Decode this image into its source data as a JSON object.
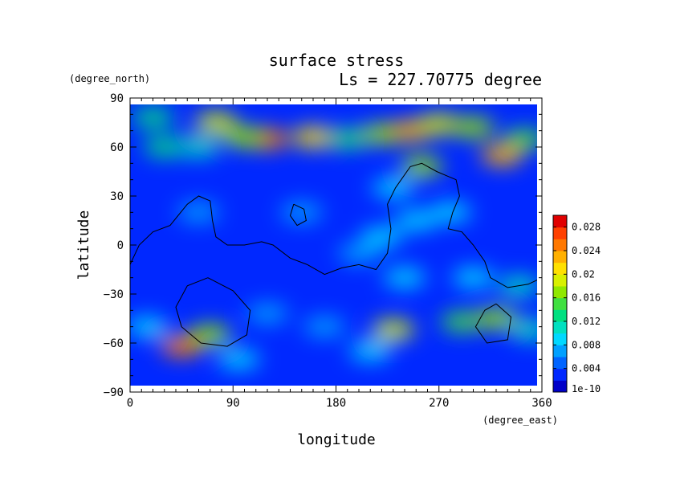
{
  "chart_data": {
    "type": "heatmap",
    "title": "surface stress",
    "subtitle": "Ls = 227.70775 degree",
    "xlabel": "longitude",
    "ylabel": "latitude",
    "x_unit": "(degree_east)",
    "y_unit": "(degree_north)",
    "xlim": [
      0,
      360
    ],
    "ylim": [
      -90,
      90
    ],
    "x_ticks": [
      "0",
      "90",
      "180",
      "270",
      "360"
    ],
    "y_ticks": [
      "90",
      "60",
      "30",
      "0",
      "−30",
      "−60",
      "−90"
    ],
    "colorbar": {
      "range": [
        0,
        0.03
      ],
      "tick_labels": [
        "1e-10",
        "0.004",
        "0.008",
        "0.012",
        "0.016",
        "0.02",
        "0.024",
        "0.028"
      ],
      "tick_values": [
        0,
        0.004,
        0.008,
        0.012,
        0.016,
        0.02,
        0.024,
        0.028
      ],
      "colors": [
        "#0000c8",
        "#0028ff",
        "#0064ff",
        "#00a0ff",
        "#00d8ff",
        "#00e0c0",
        "#00e080",
        "#40e040",
        "#90e800",
        "#d8f000",
        "#ffe000",
        "#ffb000",
        "#ff7800",
        "#ff4000",
        "#e00000"
      ]
    },
    "background_value": 0.003,
    "grid": false,
    "features": [
      {
        "lon": 75,
        "lat": 75,
        "value": 0.018
      },
      {
        "lon": 20,
        "lat": 78,
        "value": 0.012
      },
      {
        "lon": 30,
        "lat": 60,
        "value": 0.012
      },
      {
        "lon": 60,
        "lat": 60,
        "value": 0.011
      },
      {
        "lon": 120,
        "lat": 65,
        "value": 0.025
      },
      {
        "lon": 160,
        "lat": 66,
        "value": 0.02
      },
      {
        "lon": 100,
        "lat": 66,
        "value": 0.016
      },
      {
        "lon": 190,
        "lat": 65,
        "value": 0.012
      },
      {
        "lon": 220,
        "lat": 68,
        "value": 0.016
      },
      {
        "lon": 245,
        "lat": 70,
        "value": 0.022
      },
      {
        "lon": 270,
        "lat": 74,
        "value": 0.018
      },
      {
        "lon": 300,
        "lat": 72,
        "value": 0.016
      },
      {
        "lon": 325,
        "lat": 55,
        "value": 0.023
      },
      {
        "lon": 345,
        "lat": 65,
        "value": 0.014
      },
      {
        "lon": 255,
        "lat": 48,
        "value": 0.016
      },
      {
        "lon": 230,
        "lat": 35,
        "value": 0.009
      },
      {
        "lon": 250,
        "lat": 15,
        "value": 0.009
      },
      {
        "lon": 220,
        "lat": 5,
        "value": 0.008
      },
      {
        "lon": 280,
        "lat": 20,
        "value": 0.008
      },
      {
        "lon": 200,
        "lat": -5,
        "value": 0.007
      },
      {
        "lon": 240,
        "lat": -20,
        "value": 0.009
      },
      {
        "lon": 300,
        "lat": -20,
        "value": 0.008
      },
      {
        "lon": 340,
        "lat": -25,
        "value": 0.01
      },
      {
        "lon": 60,
        "lat": 20,
        "value": 0.007
      },
      {
        "lon": 150,
        "lat": 20,
        "value": 0.006
      },
      {
        "lon": 45,
        "lat": -62,
        "value": 0.025
      },
      {
        "lon": 70,
        "lat": -55,
        "value": 0.016
      },
      {
        "lon": 15,
        "lat": -50,
        "value": 0.009
      },
      {
        "lon": 95,
        "lat": -70,
        "value": 0.008
      },
      {
        "lon": 230,
        "lat": -52,
        "value": 0.018
      },
      {
        "lon": 210,
        "lat": -65,
        "value": 0.009
      },
      {
        "lon": 290,
        "lat": -47,
        "value": 0.014
      },
      {
        "lon": 320,
        "lat": -45,
        "value": 0.016
      },
      {
        "lon": 350,
        "lat": -52,
        "value": 0.011
      },
      {
        "lon": 120,
        "lat": -42,
        "value": 0.007
      },
      {
        "lon": 170,
        "lat": -50,
        "value": 0.006
      }
    ],
    "contours": [
      [
        [
          0,
          -12
        ],
        [
          8,
          0
        ],
        [
          20,
          8
        ],
        [
          35,
          12
        ],
        [
          50,
          25
        ],
        [
          60,
          30
        ],
        [
          70,
          27
        ],
        [
          72,
          15
        ],
        [
          75,
          5
        ],
        [
          85,
          0
        ],
        [
          100,
          0
        ],
        [
          115,
          2
        ],
        [
          125,
          0
        ],
        [
          140,
          -8
        ],
        [
          155,
          -12
        ],
        [
          170,
          -18
        ],
        [
          185,
          -14
        ],
        [
          200,
          -12
        ],
        [
          215,
          -15
        ],
        [
          225,
          -5
        ],
        [
          228,
          10
        ],
        [
          225,
          25
        ],
        [
          232,
          35
        ],
        [
          245,
          48
        ],
        [
          255,
          50
        ],
        [
          268,
          45
        ],
        [
          278,
          42
        ],
        [
          285,
          40
        ],
        [
          288,
          30
        ],
        [
          282,
          20
        ],
        [
          278,
          10
        ],
        [
          290,
          8
        ],
        [
          300,
          0
        ],
        [
          310,
          -10
        ],
        [
          315,
          -20
        ],
        [
          330,
          -26
        ],
        [
          348,
          -24
        ],
        [
          360,
          -20
        ]
      ],
      [
        [
          68,
          -20
        ],
        [
          90,
          -28
        ],
        [
          105,
          -40
        ],
        [
          102,
          -55
        ],
        [
          85,
          -62
        ],
        [
          62,
          -60
        ],
        [
          45,
          -50
        ],
        [
          40,
          -38
        ],
        [
          50,
          -25
        ],
        [
          68,
          -20
        ]
      ],
      [
        [
          143,
          25
        ],
        [
          152,
          22
        ],
        [
          154,
          15
        ],
        [
          146,
          12
        ],
        [
          140,
          18
        ],
        [
          143,
          25
        ]
      ],
      [
        [
          320,
          -36
        ],
        [
          333,
          -44
        ],
        [
          330,
          -58
        ],
        [
          312,
          -60
        ],
        [
          302,
          -50
        ],
        [
          310,
          -40
        ],
        [
          320,
          -36
        ]
      ]
    ]
  }
}
